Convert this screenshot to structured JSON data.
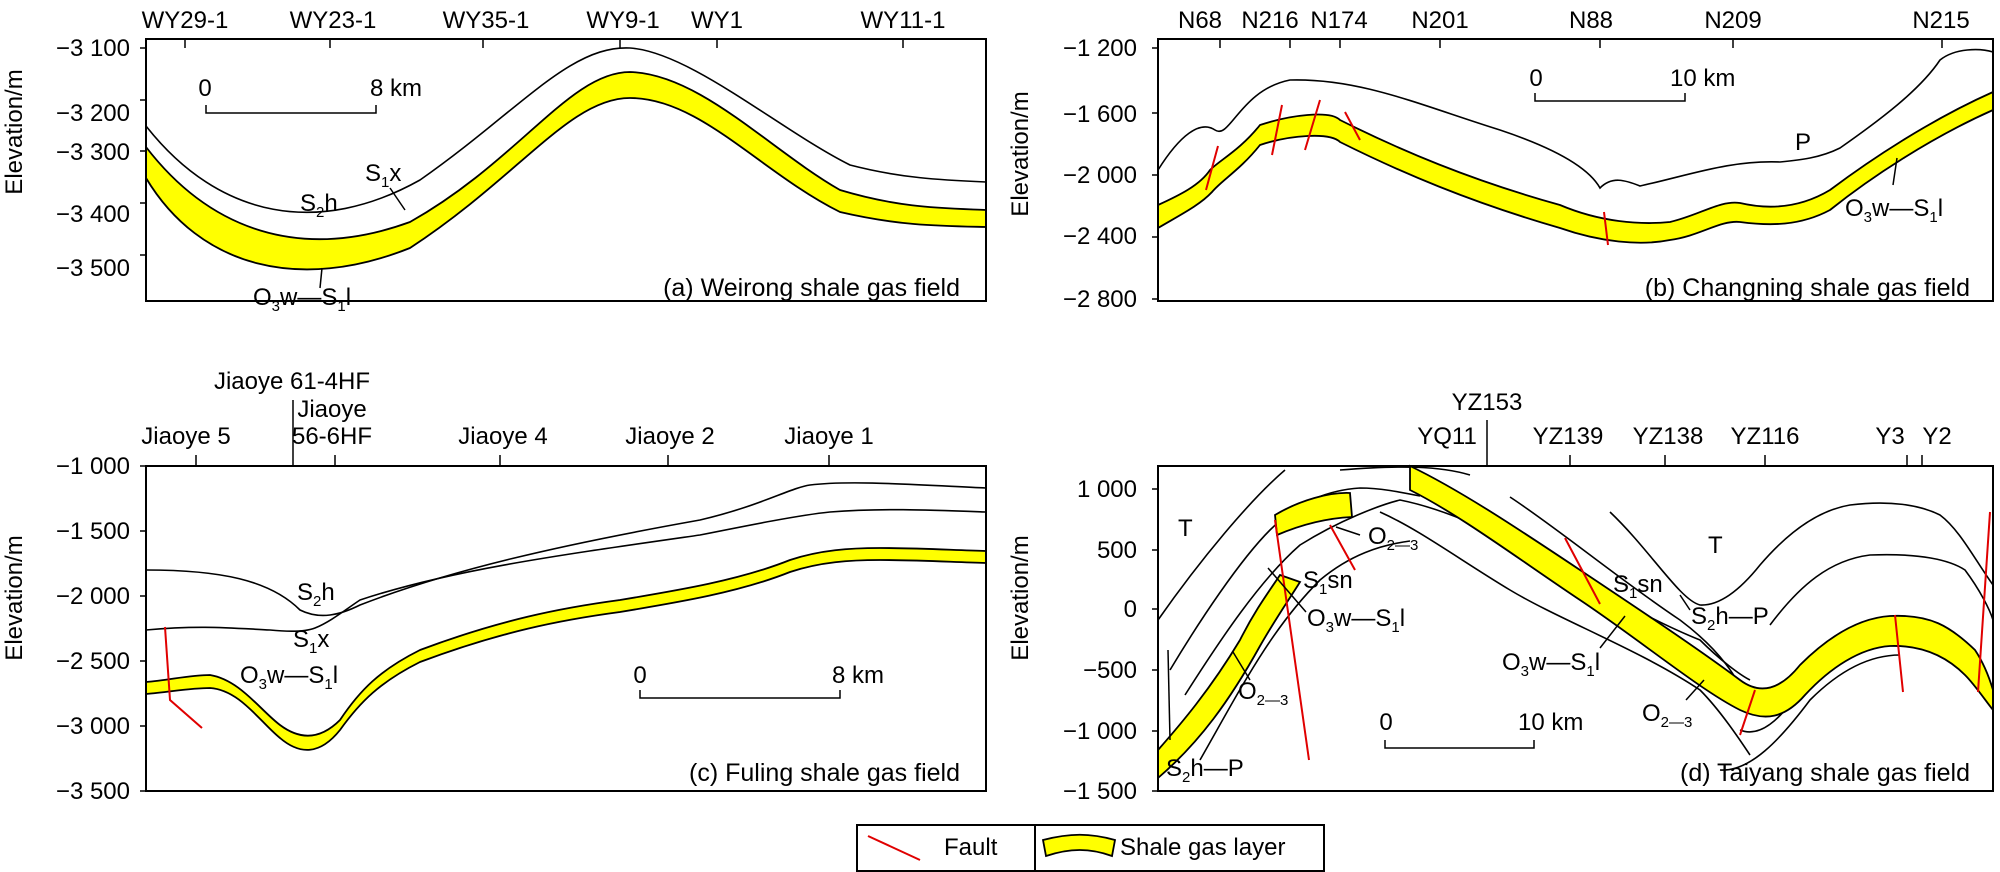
{
  "colors": {
    "gas_layer": "#ffff00",
    "fault": "#e00000",
    "line": "#000000"
  },
  "units": {
    "elevation_axis": "Elevation/m"
  },
  "panels": {
    "a": {
      "caption": "(a) Weirong shale gas field",
      "ticks": [
        "−3 100",
        "−3 200",
        "−3 300",
        "−3 400",
        "−3 500"
      ],
      "wells": [
        "WY29-1",
        "WY23-1",
        "WY35-1",
        "WY9-1",
        "WY1",
        "WY11-1"
      ],
      "scale": {
        "start": "0",
        "end": "8 km"
      },
      "labels": {
        "s2h": "S2h",
        "s1x": "S1x",
        "o3w": "O3w—S1l"
      }
    },
    "b": {
      "caption": "(b) Changning shale gas field",
      "ticks": [
        "−1 200",
        "−1 600",
        "−2 000",
        "−2 400",
        "−2 800"
      ],
      "wells": [
        "N68",
        "N216",
        "N174",
        "N201",
        "N88",
        "N209",
        "N215"
      ],
      "scale": {
        "start": "0",
        "end": "10 km"
      },
      "labels": {
        "p": "P",
        "o3w": "O3w—S1l"
      }
    },
    "c": {
      "caption": "(c) Fuling shale gas field",
      "ticks": [
        "−1 000",
        "−1 500",
        "−2 000",
        "−2 500",
        "−3 000",
        "−3 500"
      ],
      "wells": [
        "Jiaoye 5",
        "Jiaoye 61-4HF",
        "Jiaoye",
        "56-6HF",
        "Jiaoye 4",
        "Jiaoye 2",
        "Jiaoye 1"
      ],
      "scale": {
        "start": "0",
        "end": "8 km"
      },
      "labels": {
        "s2h": "S2h",
        "s1x": "S1x",
        "o3w": "O3w—S1l"
      }
    },
    "d": {
      "caption": "(d) Taiyang shale gas field",
      "ticks": [
        "1 000",
        "500",
        "0",
        "−500",
        "−1 000",
        "−1 500"
      ],
      "wells": [
        "YZ153",
        "YQ11",
        "YZ139",
        "YZ138",
        "YZ116",
        "Y3",
        "Y2"
      ],
      "scale": {
        "start": "0",
        "end": "10 km"
      },
      "labels": {
        "t": "T",
        "t2": "T",
        "o23": "O2—3",
        "s1sn": "S1sn",
        "o3w": "O3w—S1l",
        "o23b": "O2—3",
        "s2hp": "S2h—P",
        "s1sn2": "S1sn",
        "s2hp2": "S2h—P",
        "o3w2": "O3w—S1l",
        "o23c": "O2—3"
      }
    }
  },
  "legend": {
    "fault": "Fault",
    "gas": "Shale gas layer"
  }
}
